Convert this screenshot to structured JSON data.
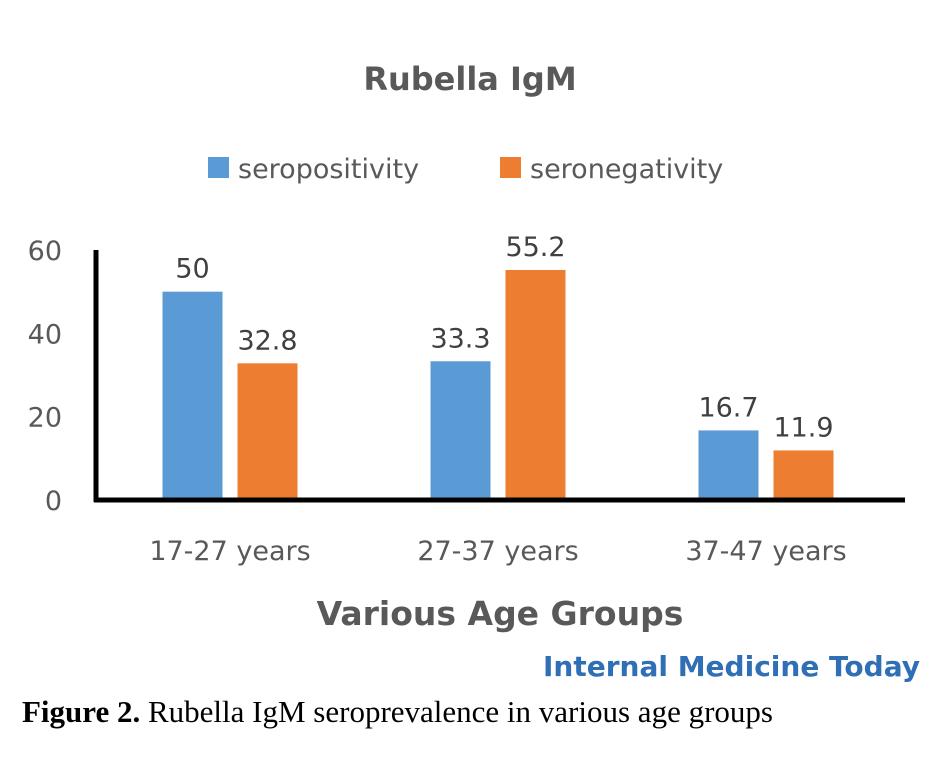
{
  "chart_data": {
    "type": "bar",
    "title": "Rubella IgM",
    "categories": [
      "17-27 years",
      "27-37 years",
      "37-47 years"
    ],
    "series": [
      {
        "name": "seropositivity",
        "color": "#5b9bd5",
        "values": [
          50,
          33.3,
          16.7
        ]
      },
      {
        "name": "seronegativity",
        "color": "#ed7d31",
        "values": [
          32.8,
          55.2,
          11.9
        ]
      }
    ],
    "xlabel": "Various Age Groups",
    "ylabel": "",
    "ylim": [
      0,
      60
    ],
    "yticks": [
      0,
      20,
      40,
      60
    ],
    "grid": false,
    "legend": "top-center",
    "data_labels": [
      "50",
      "33.3",
      "16.7",
      "32.8",
      "55.2",
      "11.9"
    ],
    "ytick_labels": [
      "0",
      "20",
      "40",
      "60"
    ]
  },
  "watermark": "Internal Medicine Today",
  "caption": {
    "label": "Figure 2.",
    "text": " Rubella IgM seroprevalence in various age groups"
  }
}
